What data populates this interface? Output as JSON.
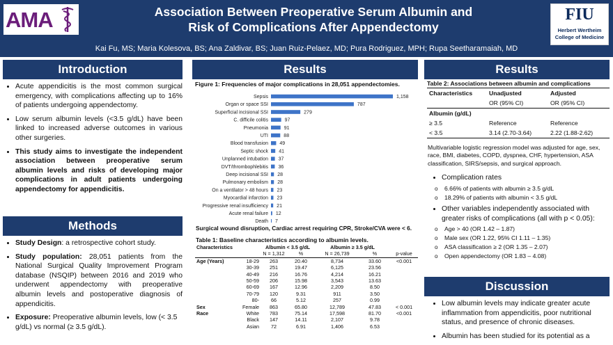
{
  "header": {
    "title_line1": "Association Between Preoperative Serum Albumin and",
    "title_line2": "Risk of Complications After Appendectomy",
    "authors": "Kai Fu, MS; Maria Kolesova, BS; Ana Zaldivar, BS; Juan Ruiz-Pelaez, MD;  Pura Rodriguez, MPH; Rupa Seetharamaiah, MD",
    "left_logo_text": "AMA",
    "right_logo_mark": "FIU",
    "right_logo_line1": "Herbert Wertheim",
    "right_logo_line2": "College of Medicine"
  },
  "colors": {
    "header_bg": "#1e3c6e",
    "bar": "#3e74c8",
    "ama_purple": "#6b1d7a"
  },
  "introduction": {
    "title": "Introduction",
    "bullets": [
      "Acute appendicitis is the most common surgical emergency, with complications affecting up to 16% of patients undergoing appendectomy.",
      "Low serum albumin levels (<3.5 g/dL) have been linked to increased adverse outcomes in various other surgeries.",
      "This study aims to investigate the independent association between preoperative serum albumin levels and risks of developing major complications in adult patients undergoing appendectomy for appendicitis."
    ]
  },
  "methods": {
    "title": "Methods",
    "items": [
      {
        "label": "Study Design",
        "text": ": a retrospective cohort study."
      },
      {
        "label": "Study population:",
        "text": " 28,051 patients from the National Surgical Quality Improvement Program database (NSQIP) between 2016 and 2019 who underwent appendectomy with preoperative albumin levels and postoperative diagnosis of appendicitis."
      },
      {
        "label": "Exposure:",
        "text": " Preoperative albumin levels, low (< 3.5 g/dL) vs normal (≥ 3.5 g/dL)."
      }
    ]
  },
  "results_middle": {
    "title": "Results",
    "figure_caption": "Figure 1: Frequencies of major complications in 28,051 appendectomies.",
    "figure_footnote": "Surgical wound disruption, Cardiac arrest requiring CPR, Stroke/CVA were < 6.",
    "table_caption": "Table 1: Baseline characteristics according to albumin levels.",
    "table_header": {
      "characteristics": "Characteristics",
      "group1": "Albumin < 3.5 g/dL",
      "group2": "Albumin ≥ 3.5 g/dL",
      "group1_n": "N = 1,312",
      "group2_n": "N = 26,739",
      "pct": "%",
      "pvalue": "p-value"
    },
    "table_rows": [
      {
        "char": "Age (Years)",
        "sub": "18-29",
        "n1": "263",
        "p1": "20.40",
        "n2": "8,734",
        "p2": "33.60",
        "pval": "<0.001"
      },
      {
        "char": "",
        "sub": "30-39",
        "n1": "251",
        "p1": "19.47",
        "n2": "6,125",
        "p2": "23.56",
        "pval": ""
      },
      {
        "char": "",
        "sub": "40-49",
        "n1": "216",
        "p1": "16.76",
        "n2": "4,214",
        "p2": "16.21",
        "pval": ""
      },
      {
        "char": "",
        "sub": "50-59",
        "n1": "206",
        "p1": "15.98",
        "n2": "3,543",
        "p2": "13.63",
        "pval": ""
      },
      {
        "char": "",
        "sub": "60-69",
        "n1": "167",
        "p1": "12.96",
        "n2": "2,209",
        "p2": "8.50",
        "pval": ""
      },
      {
        "char": "",
        "sub": "70-79",
        "n1": "120",
        "p1": "9.31",
        "n2": "911",
        "p2": "3.50",
        "pval": ""
      },
      {
        "char": "",
        "sub": "80-",
        "n1": "66",
        "p1": "5.12",
        "n2": "257",
        "p2": "0.99",
        "pval": ""
      },
      {
        "char": "Sex",
        "sub": "Female",
        "n1": "863",
        "p1": "65.80",
        "n2": "12,789",
        "p2": "47.83",
        "pval": "< 0.001"
      },
      {
        "char": "Race",
        "sub": "White",
        "n1": "783",
        "p1": "75.14",
        "n2": "17,598",
        "p2": "81.70",
        "pval": "<0.001"
      },
      {
        "char": "",
        "sub": "Black",
        "n1": "147",
        "p1": "14.11",
        "n2": "2,107",
        "p2": "9.78",
        "pval": ""
      },
      {
        "char": "",
        "sub": "Asian",
        "n1": "72",
        "p1": "6.91",
        "n2": "1,406",
        "p2": "6.53",
        "pval": ""
      }
    ]
  },
  "results_right": {
    "title": "Results",
    "table_caption": "Table 2: Associations between albumin and complications",
    "col_headers": [
      "Characteristics",
      "Unadjusted",
      "Adjusted"
    ],
    "col_sub": [
      "",
      "OR (95% CI)",
      "OR (95% CI)"
    ],
    "group_label": "Albumin (g/dL)",
    "rows": [
      [
        "≥ 3.5",
        "Reference",
        "Reference"
      ],
      [
        "< 3.5",
        "3.14 (2.70-3.64)",
        "2.22 (1.88-2.62)"
      ]
    ],
    "adjustment_note": "Multivariable logistic regression model was adjusted for age, sex, race, BMI, diabetes, COPD, dyspnea, CHF, hypertension, ASA classification, SIRS/sepsis, and surgical approach.",
    "rates_title": "Complication rates",
    "rates": [
      "6.66% of patients with albumin ≥ 3.5 g/dL",
      "18.29% of patients with albumin < 3.5 g/dL"
    ],
    "other_title": "Other variables independently associated with greater risks of complications (all with p < 0.05):",
    "other": [
      "Age > 40 (OR 1.42 – 1.87)",
      "Male sex (OR 1.22, 95% CI 1.11 – 1.35)",
      "ASA classification ≥ 2 (OR 1.35 – 2.07)",
      "Open appendectomy (OR 1.83 – 4.08)"
    ]
  },
  "discussion": {
    "title": "Discussion",
    "bullets": [
      "Low albumin levels may indicate greater acute inflammation from appendicitis, poor nutritional status, and presence of chronic diseases.",
      "Albumin has been studied for its potential as a"
    ]
  },
  "chart_data": {
    "type": "bar",
    "orientation": "horizontal",
    "categories": [
      "Sepsis",
      "Organ or space SSI",
      "Superficial incisional SSI",
      "C. difficile colitis",
      "Pneumonia",
      "UTI",
      "Blood transfusion",
      "Septic shock",
      "Unplanned intubation",
      "DVT/thrombophlebitis",
      "Deep incisional SSI",
      "Pulmonary embolism",
      "On a ventilator > 48 hours",
      "Myocardial infarction",
      "Progressive renal insufficiency",
      "Acute renal failure",
      "Death"
    ],
    "values": [
      1158,
      787,
      279,
      97,
      91,
      88,
      49,
      41,
      37,
      36,
      28,
      28,
      23,
      23,
      21,
      12,
      7
    ],
    "value_labels": [
      "1,158",
      "787",
      "279",
      "97",
      "91",
      "88",
      "49",
      "41",
      "37",
      "36",
      "28",
      "28",
      "23",
      "23",
      "21",
      "12",
      "7"
    ],
    "xlim": [
      0,
      1158
    ],
    "grid": false,
    "legend": "none"
  }
}
